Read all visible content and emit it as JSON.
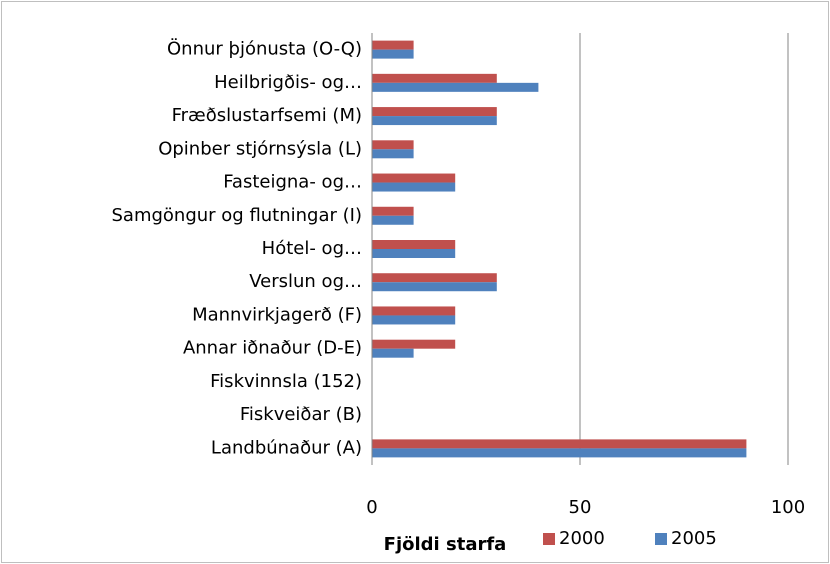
{
  "chart_data": {
    "type": "bar",
    "orientation": "horizontal",
    "categories": [
      "Önnur þjónusta (O-Q)",
      "Heilbrigðis- og…",
      "Fræðslustarfsemi (M)",
      "Opinber stjórnsýsla (L)",
      "Fasteigna- og…",
      "Samgöngur og flutningar (I)",
      "Hótel- og…",
      "Verslun og…",
      "Mannvirkjagerð (F)",
      "Annar iðnaður (D-E)",
      "Fiskvinnsla (152)",
      "Fiskveiðar (B)",
      "Landbúnaður (A)"
    ],
    "series": [
      {
        "name": "2000",
        "color": "#c0504d",
        "values": [
          10,
          30,
          30,
          10,
          20,
          10,
          20,
          30,
          20,
          20,
          0,
          0,
          90
        ]
      },
      {
        "name": "2005",
        "color": "#4f81bd",
        "values": [
          10,
          40,
          30,
          10,
          20,
          10,
          20,
          30,
          20,
          10,
          0,
          0,
          90
        ]
      }
    ],
    "xlabel": "Fjöldi starfa",
    "xlim": [
      0,
      100
    ],
    "xticks": [
      0,
      50,
      100
    ],
    "grid": true,
    "legend": "bottom"
  }
}
